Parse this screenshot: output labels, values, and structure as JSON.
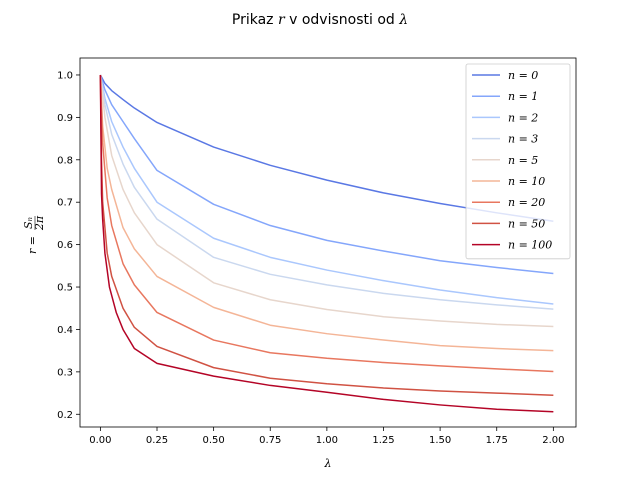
{
  "chart_data": {
    "type": "line",
    "title_prefix": "Prikaz ",
    "title_r": "r",
    "title_middle": " v odvisnosti od ",
    "title_lambda": "λ",
    "xlabel": "λ",
    "ylabel_prefix": "r = ",
    "ylabel_num": "Sₙ",
    "ylabel_den": "2π",
    "xlim": [
      -0.09,
      2.1
    ],
    "ylim": [
      0.17,
      1.04
    ],
    "xticks": [
      "0.00",
      "0.25",
      "0.50",
      "0.75",
      "1.00",
      "1.25",
      "1.50",
      "1.75",
      "2.00"
    ],
    "xtick_values": [
      0,
      0.25,
      0.5,
      0.75,
      1.0,
      1.25,
      1.5,
      1.75,
      2.0
    ],
    "yticks": [
      "0.2",
      "0.3",
      "0.4",
      "0.5",
      "0.6",
      "0.7",
      "0.8",
      "0.9",
      "1.0"
    ],
    "ytick_values": [
      0.2,
      0.3,
      0.4,
      0.5,
      0.6,
      0.7,
      0.8,
      0.9,
      1.0
    ],
    "grid": false,
    "legend_position": "top-right",
    "series": [
      {
        "name": "n = 0",
        "color": "#5a78e4",
        "points": [
          [
            0,
            1.0
          ],
          [
            0.02,
            0.98
          ],
          [
            0.05,
            0.963
          ],
          [
            0.1,
            0.942
          ],
          [
            0.15,
            0.922
          ],
          [
            0.25,
            0.888
          ],
          [
            0.5,
            0.83
          ],
          [
            0.75,
            0.787
          ],
          [
            1.0,
            0.752
          ],
          [
            1.25,
            0.722
          ],
          [
            1.5,
            0.697
          ],
          [
            1.75,
            0.675
          ],
          [
            2.0,
            0.655
          ]
        ]
      },
      {
        "name": "n = 1",
        "color": "#84a6fb",
        "points": [
          [
            0,
            1.0
          ],
          [
            0.02,
            0.965
          ],
          [
            0.05,
            0.93
          ],
          [
            0.1,
            0.89
          ],
          [
            0.15,
            0.85
          ],
          [
            0.25,
            0.775
          ],
          [
            0.5,
            0.695
          ],
          [
            0.75,
            0.645
          ],
          [
            1.0,
            0.61
          ],
          [
            1.25,
            0.585
          ],
          [
            1.5,
            0.562
          ],
          [
            1.75,
            0.546
          ],
          [
            2.0,
            0.532
          ]
        ]
      },
      {
        "name": "n = 2",
        "color": "#aac7fd",
        "points": [
          [
            0,
            1.0
          ],
          [
            0.02,
            0.945
          ],
          [
            0.05,
            0.89
          ],
          [
            0.1,
            0.83
          ],
          [
            0.15,
            0.78
          ],
          [
            0.25,
            0.7
          ],
          [
            0.5,
            0.615
          ],
          [
            0.75,
            0.57
          ],
          [
            1.0,
            0.54
          ],
          [
            1.25,
            0.515
          ],
          [
            1.5,
            0.493
          ],
          [
            1.75,
            0.475
          ],
          [
            2.0,
            0.46
          ]
        ]
      },
      {
        "name": "n = 3",
        "color": "#cad8ef",
        "points": [
          [
            0,
            1.0
          ],
          [
            0.02,
            0.93
          ],
          [
            0.05,
            0.86
          ],
          [
            0.1,
            0.79
          ],
          [
            0.15,
            0.735
          ],
          [
            0.25,
            0.66
          ],
          [
            0.5,
            0.57
          ],
          [
            0.75,
            0.53
          ],
          [
            1.0,
            0.505
          ],
          [
            1.25,
            0.485
          ],
          [
            1.5,
            0.47
          ],
          [
            1.75,
            0.458
          ],
          [
            2.0,
            0.448
          ]
        ]
      },
      {
        "name": "n = 5",
        "color": "#e7d6cc",
        "points": [
          [
            0,
            1.0
          ],
          [
            0.02,
            0.9
          ],
          [
            0.05,
            0.81
          ],
          [
            0.1,
            0.73
          ],
          [
            0.15,
            0.675
          ],
          [
            0.25,
            0.6
          ],
          [
            0.5,
            0.51
          ],
          [
            0.75,
            0.47
          ],
          [
            1.0,
            0.447
          ],
          [
            1.25,
            0.43
          ],
          [
            1.5,
            0.42
          ],
          [
            1.75,
            0.412
          ],
          [
            2.0,
            0.407
          ]
        ]
      },
      {
        "name": "n = 10",
        "color": "#f4b597",
        "points": [
          [
            0,
            1.0
          ],
          [
            0.01,
            0.88
          ],
          [
            0.03,
            0.78
          ],
          [
            0.05,
            0.73
          ],
          [
            0.1,
            0.64
          ],
          [
            0.15,
            0.59
          ],
          [
            0.25,
            0.525
          ],
          [
            0.5,
            0.452
          ],
          [
            0.75,
            0.41
          ],
          [
            1.0,
            0.39
          ],
          [
            1.25,
            0.375
          ],
          [
            1.5,
            0.362
          ],
          [
            1.75,
            0.355
          ],
          [
            2.0,
            0.35
          ]
        ]
      },
      {
        "name": "n = 20",
        "color": "#e8775f",
        "points": [
          [
            0,
            1.0
          ],
          [
            0.01,
            0.84
          ],
          [
            0.03,
            0.71
          ],
          [
            0.05,
            0.645
          ],
          [
            0.1,
            0.555
          ],
          [
            0.15,
            0.505
          ],
          [
            0.25,
            0.44
          ],
          [
            0.5,
            0.375
          ],
          [
            0.75,
            0.345
          ],
          [
            1.0,
            0.332
          ],
          [
            1.25,
            0.322
          ],
          [
            1.5,
            0.314
          ],
          [
            1.75,
            0.307
          ],
          [
            2.0,
            0.301
          ]
        ]
      },
      {
        "name": "n = 50",
        "color": "#d05243",
        "points": [
          [
            0,
            1.0
          ],
          [
            0.005,
            0.8
          ],
          [
            0.01,
            0.7
          ],
          [
            0.03,
            0.58
          ],
          [
            0.05,
            0.525
          ],
          [
            0.1,
            0.45
          ],
          [
            0.15,
            0.405
          ],
          [
            0.25,
            0.36
          ],
          [
            0.5,
            0.31
          ],
          [
            0.75,
            0.285
          ],
          [
            1.0,
            0.272
          ],
          [
            1.25,
            0.262
          ],
          [
            1.5,
            0.255
          ],
          [
            1.75,
            0.25
          ],
          [
            2.0,
            0.245
          ]
        ]
      },
      {
        "name": "n = 100",
        "color": "#b40426",
        "points": [
          [
            0,
            1.0
          ],
          [
            0.005,
            0.72
          ],
          [
            0.01,
            0.66
          ],
          [
            0.02,
            0.58
          ],
          [
            0.04,
            0.5
          ],
          [
            0.07,
            0.44
          ],
          [
            0.1,
            0.4
          ],
          [
            0.15,
            0.355
          ],
          [
            0.25,
            0.32
          ],
          [
            0.5,
            0.29
          ],
          [
            0.75,
            0.268
          ],
          [
            1.0,
            0.252
          ],
          [
            1.25,
            0.235
          ],
          [
            1.5,
            0.222
          ],
          [
            1.75,
            0.212
          ],
          [
            2.0,
            0.206
          ]
        ]
      }
    ]
  }
}
